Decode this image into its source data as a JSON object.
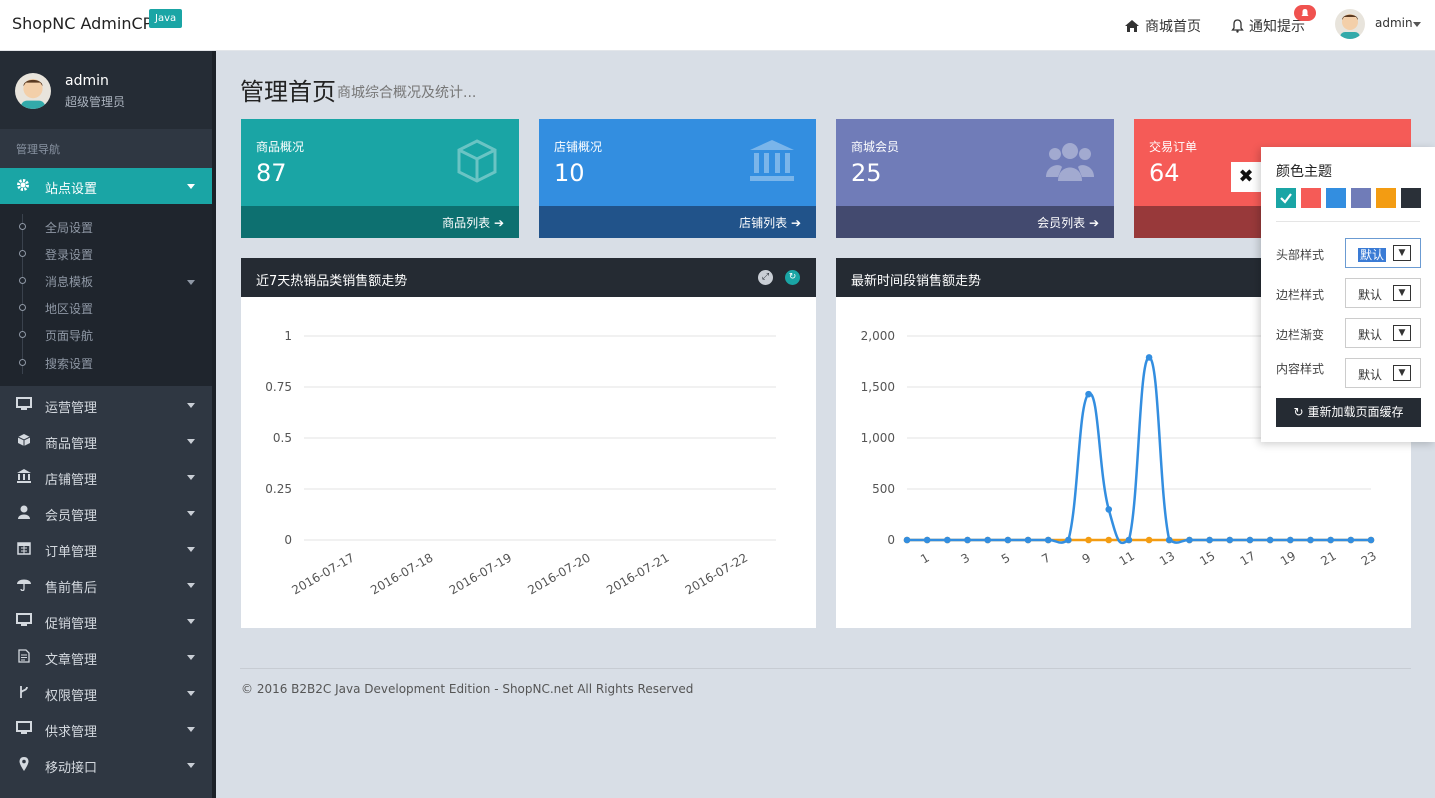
{
  "topbar": {
    "brand": "ShopNC AdminCP",
    "badge": "Java",
    "home_link": "商城首页",
    "notify_link": "通知提示",
    "user": "admin"
  },
  "sidebar": {
    "user_name": "admin",
    "user_role": "超级管理员",
    "nav_title": "管理导航",
    "active_item": "站点设置",
    "sub_items": [
      "全局设置",
      "登录设置",
      "消息模板",
      "地区设置",
      "页面导航",
      "搜索设置"
    ],
    "menu_items": [
      "运营管理",
      "商品管理",
      "店铺管理",
      "会员管理",
      "订单管理",
      "售前售后",
      "促销管理",
      "文章管理",
      "权限管理",
      "供求管理",
      "移动接口"
    ]
  },
  "page": {
    "title": "管理首页",
    "subtitle": "商城综合概况及统计..."
  },
  "cards": [
    {
      "title": "商品概况",
      "value": "87",
      "link": "商品列表",
      "color": "#1aa5a5",
      "foot_color": "#0d7070"
    },
    {
      "title": "店铺概况",
      "value": "10",
      "link": "店铺列表",
      "color": "#338ee0",
      "foot_color": "#21538a"
    },
    {
      "title": "商城会员",
      "value": "25",
      "link": "会员列表",
      "color": "#707cb8",
      "foot_color": "#434a6f"
    },
    {
      "title": "交易订单",
      "value": "64",
      "link": "",
      "color": "#f55b57",
      "foot_color": "#98393a"
    }
  ],
  "panels": {
    "left_title": "近7天热销品类销售额走势",
    "right_title": "最新时间段销售额走势"
  },
  "chart_data": [
    {
      "type": "line",
      "title": "近7天热销品类销售额走势",
      "categories": [
        "2016-07-17",
        "2016-07-18",
        "2016-07-19",
        "2016-07-20",
        "2016-07-21",
        "2016-07-22"
      ],
      "ylim": [
        0,
        1
      ],
      "yticks": [
        "0",
        "0.25",
        "0.5",
        "0.75",
        "1"
      ],
      "series": []
    },
    {
      "type": "line",
      "title": "最新时间段销售额走势",
      "x": [
        0,
        1,
        2,
        3,
        4,
        5,
        6,
        7,
        8,
        9,
        10,
        11,
        12,
        13,
        14,
        15,
        16,
        17,
        18,
        19,
        20,
        21,
        22,
        23
      ],
      "xtick_labels": [
        "1",
        "3",
        "5",
        "7",
        "9",
        "11",
        "13",
        "15",
        "17",
        "19",
        "21",
        "23"
      ],
      "ylim": [
        0,
        2000
      ],
      "yticks": [
        "0",
        "500",
        "1,000",
        "1,500",
        "2,000"
      ],
      "series": [
        {
          "color": "#f39c12",
          "values": [
            0,
            0,
            0,
            0,
            0,
            0,
            0,
            0,
            0,
            0,
            0,
            0,
            0,
            0,
            0,
            0,
            0,
            0,
            0,
            0,
            0,
            0,
            0,
            0
          ]
        },
        {
          "color": "#338ee0",
          "values": [
            0,
            0,
            0,
            0,
            0,
            0,
            0,
            0,
            0,
            1430,
            300,
            0,
            1790,
            0,
            0,
            0,
            0,
            0,
            0,
            0,
            0,
            0,
            0,
            0
          ]
        }
      ]
    }
  ],
  "footer": "© 2016 B2B2C Java Development Edition - ShopNC.net All Rights Reserved",
  "theme_panel": {
    "title": "颜色主题",
    "swatches": [
      "#1aa5a5",
      "#f55b57",
      "#338ee0",
      "#707cb8",
      "#f39c12",
      "#2a3038"
    ],
    "rows": [
      {
        "label": "头部样式",
        "value": "默认"
      },
      {
        "label": "边栏样式",
        "value": "默认"
      },
      {
        "label": "边栏渐变",
        "value": "默认"
      },
      {
        "label": "内容样式",
        "value": "默认"
      }
    ],
    "button": "重新加载页面缓存"
  }
}
